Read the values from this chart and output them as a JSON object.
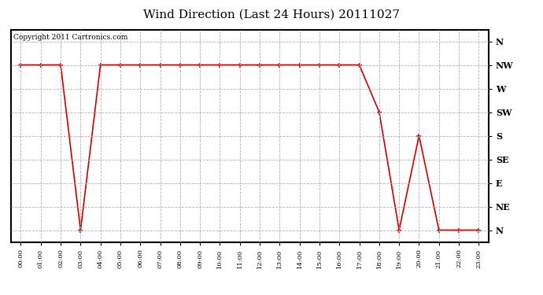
{
  "title": "Wind Direction (Last 24 Hours) 20111027",
  "copyright_text": "Copyright 2011 Cartronics.com",
  "background_color": "#ffffff",
  "plot_bg_color": "#ffffff",
  "line_color": "#cc0000",
  "marker_color": "#cc0000",
  "grid_color": "#b0b0b0",
  "x_labels": [
    "00:00",
    "01:00",
    "02:00",
    "03:00",
    "04:00",
    "05:00",
    "06:00",
    "07:00",
    "08:00",
    "09:00",
    "10:00",
    "11:00",
    "12:00",
    "13:00",
    "14:00",
    "15:00",
    "16:00",
    "17:00",
    "18:00",
    "19:00",
    "20:00",
    "21:00",
    "22:00",
    "23:00"
  ],
  "y_labels": [
    "N",
    "NE",
    "E",
    "SE",
    "S",
    "SW",
    "W",
    "NW",
    "N"
  ],
  "y_values": [
    0,
    1,
    2,
    3,
    4,
    5,
    6,
    7,
    8
  ],
  "data_y": [
    7,
    7,
    7,
    0,
    7,
    7,
    7,
    7,
    7,
    7,
    7,
    7,
    7,
    7,
    7,
    7,
    7,
    7,
    5,
    0,
    4,
    0,
    0,
    0
  ],
  "title_fontsize": 11,
  "copyright_fontsize": 6.5,
  "ylabel_fontsize": 8,
  "xlabel_fontsize": 6
}
